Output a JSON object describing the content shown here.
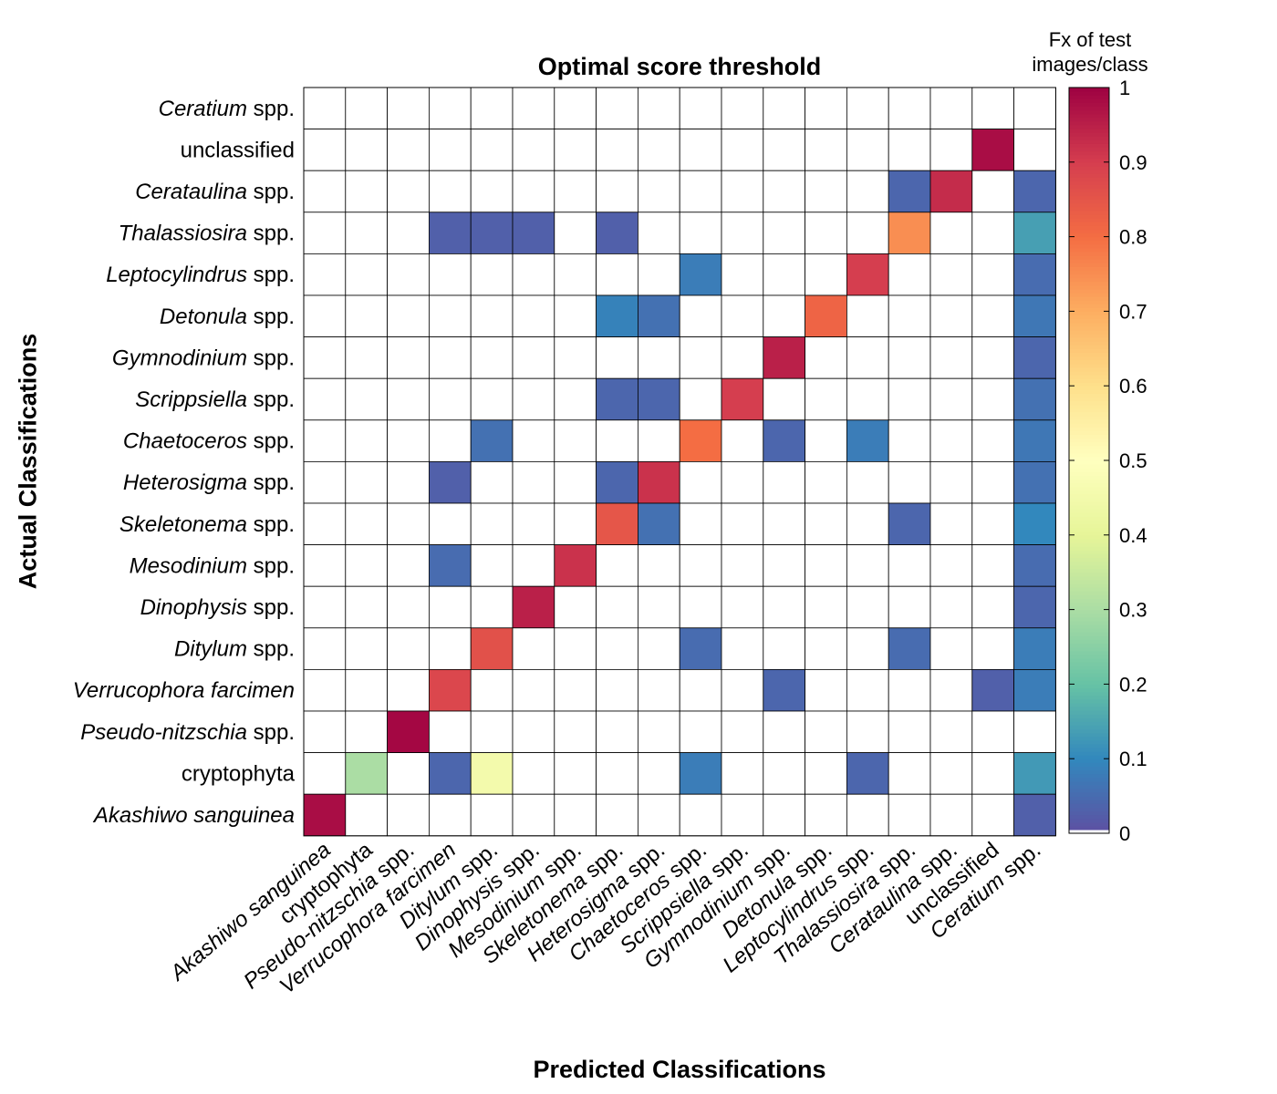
{
  "chart_data": {
    "type": "heatmap",
    "title": "Optimal score threshold",
    "xlabel": "Predicted Classifications",
    "ylabel": "Actual Classifications",
    "x_categories": [
      {
        "name": "Akashiwo sanguinea",
        "italic": "Akashiwo sanguinea",
        "suffix": ""
      },
      {
        "name": "cryptophyta",
        "italic": "",
        "suffix": "cryptophyta"
      },
      {
        "name": "Pseudo-nitzschia spp.",
        "italic": "Pseudo-nitzschia",
        "suffix": " spp."
      },
      {
        "name": "Verrucophora farcimen",
        "italic": "Verrucophora farcimen",
        "suffix": ""
      },
      {
        "name": "Ditylum spp.",
        "italic": "Ditylum",
        "suffix": " spp."
      },
      {
        "name": "Dinophysis spp.",
        "italic": "Dinophysis",
        "suffix": " spp."
      },
      {
        "name": "Mesodinium spp.",
        "italic": "Mesodinium",
        "suffix": " spp."
      },
      {
        "name": "Skeletonema spp.",
        "italic": "Skeletonema",
        "suffix": " spp."
      },
      {
        "name": "Heterosigma spp.",
        "italic": "Heterosigma",
        "suffix": " spp."
      },
      {
        "name": "Chaetoceros spp.",
        "italic": "Chaetoceros",
        "suffix": " spp."
      },
      {
        "name": "Scrippsiella spp.",
        "italic": "Scrippsiella",
        "suffix": " spp."
      },
      {
        "name": "Gymnodinium spp.",
        "italic": "Gymnodinium",
        "suffix": " spp."
      },
      {
        "name": "Detonula spp.",
        "italic": "Detonula",
        "suffix": " spp."
      },
      {
        "name": "Leptocylindrus spp.",
        "italic": "Leptocylindrus",
        "suffix": " spp."
      },
      {
        "name": "Thalassiosira spp.",
        "italic": "Thalassiosira",
        "suffix": " spp."
      },
      {
        "name": "Cerataulina spp.",
        "italic": "Cerataulina",
        "suffix": " spp."
      },
      {
        "name": "unclassified",
        "italic": "",
        "suffix": "unclassified"
      },
      {
        "name": "Ceratium spp.",
        "italic": "Ceratium",
        "suffix": " spp."
      }
    ],
    "y_categories": [
      {
        "name": "Ceratium spp.",
        "italic": "Ceratium",
        "suffix": " spp."
      },
      {
        "name": "unclassified",
        "italic": "",
        "suffix": "unclassified"
      },
      {
        "name": "Cerataulina spp.",
        "italic": "Cerataulina",
        "suffix": " spp."
      },
      {
        "name": "Thalassiosira spp.",
        "italic": "Thalassiosira",
        "suffix": " spp."
      },
      {
        "name": "Leptocylindrus spp.",
        "italic": "Leptocylindrus",
        "suffix": " spp."
      },
      {
        "name": "Detonula spp.",
        "italic": "Detonula",
        "suffix": " spp."
      },
      {
        "name": "Gymnodinium spp.",
        "italic": "Gymnodinium",
        "suffix": " spp."
      },
      {
        "name": "Scrippsiella spp.",
        "italic": "Scrippsiella",
        "suffix": " spp."
      },
      {
        "name": "Chaetoceros spp.",
        "italic": "Chaetoceros",
        "suffix": " spp."
      },
      {
        "name": "Heterosigma spp.",
        "italic": "Heterosigma",
        "suffix": " spp."
      },
      {
        "name": "Skeletonema spp.",
        "italic": "Skeletonema",
        "suffix": " spp."
      },
      {
        "name": "Mesodinium spp.",
        "italic": "Mesodinium",
        "suffix": " spp."
      },
      {
        "name": "Dinophysis spp.",
        "italic": "Dinophysis",
        "suffix": " spp."
      },
      {
        "name": "Ditylum spp.",
        "italic": "Ditylum",
        "suffix": " spp."
      },
      {
        "name": "Verrucophora farcimen",
        "italic": "Verrucophora farcimen",
        "suffix": ""
      },
      {
        "name": "Pseudo-nitzschia spp.",
        "italic": "Pseudo-nitzschia",
        "suffix": " spp."
      },
      {
        "name": "cryptophyta",
        "italic": "",
        "suffix": "cryptophyta"
      },
      {
        "name": "Akashiwo sanguinea",
        "italic": "Akashiwo sanguinea",
        "suffix": ""
      }
    ],
    "values": [
      [
        0,
        0,
        0,
        0,
        0,
        0,
        0,
        0,
        0,
        0,
        0,
        0,
        0,
        0,
        0,
        0,
        0,
        0
      ],
      [
        0,
        0,
        0,
        0,
        0,
        0,
        0,
        0,
        0,
        0,
        0,
        0,
        0,
        0,
        0,
        0,
        0.98,
        0
      ],
      [
        0,
        0,
        0,
        0,
        0,
        0,
        0,
        0,
        0,
        0,
        0,
        0,
        0,
        0,
        0.04,
        0.93,
        0,
        0.04
      ],
      [
        0,
        0,
        0,
        0.03,
        0.03,
        0.03,
        0,
        0.03,
        0,
        0,
        0,
        0,
        0,
        0,
        0.75,
        0,
        0,
        0.14
      ],
      [
        0,
        0,
        0,
        0,
        0,
        0,
        0,
        0,
        0,
        0.08,
        0,
        0,
        0,
        0.9,
        0,
        0,
        0,
        0.05
      ],
      [
        0,
        0,
        0,
        0,
        0,
        0,
        0,
        0.09,
        0.06,
        0,
        0,
        0,
        0.82,
        0,
        0,
        0,
        0,
        0.07
      ],
      [
        0,
        0,
        0,
        0,
        0,
        0,
        0,
        0,
        0,
        0,
        0,
        0.95,
        0,
        0,
        0,
        0,
        0,
        0.04
      ],
      [
        0,
        0,
        0,
        0,
        0,
        0,
        0,
        0.04,
        0.04,
        0,
        0.9,
        0,
        0,
        0,
        0,
        0,
        0,
        0.06
      ],
      [
        0,
        0,
        0,
        0,
        0.06,
        0,
        0,
        0,
        0,
        0.8,
        0,
        0.04,
        0,
        0.08,
        0,
        0,
        0,
        0.07
      ],
      [
        0,
        0,
        0,
        0.03,
        0,
        0,
        0,
        0.04,
        0.92,
        0,
        0,
        0,
        0,
        0,
        0,
        0,
        0,
        0.06
      ],
      [
        0,
        0,
        0,
        0,
        0,
        0,
        0,
        0.85,
        0.06,
        0,
        0,
        0,
        0,
        0,
        0.04,
        0,
        0,
        0.1
      ],
      [
        0,
        0,
        0,
        0.05,
        0,
        0,
        0.92,
        0,
        0,
        0,
        0,
        0,
        0,
        0,
        0,
        0,
        0,
        0.05
      ],
      [
        0,
        0,
        0,
        0,
        0,
        0.95,
        0,
        0,
        0,
        0,
        0,
        0,
        0,
        0,
        0,
        0,
        0,
        0.04
      ],
      [
        0,
        0,
        0,
        0,
        0.86,
        0,
        0,
        0,
        0,
        0.05,
        0,
        0,
        0,
        0,
        0.05,
        0,
        0,
        0.08
      ],
      [
        0,
        0,
        0,
        0.88,
        0,
        0,
        0,
        0,
        0,
        0,
        0,
        0.04,
        0,
        0,
        0,
        0,
        0.03,
        0.08
      ],
      [
        0,
        0,
        0.99,
        0,
        0,
        0,
        0,
        0,
        0,
        0,
        0,
        0,
        0,
        0,
        0,
        0,
        0,
        0
      ],
      [
        0,
        0.3,
        0,
        0.04,
        0.45,
        0,
        0,
        0,
        0,
        0.08,
        0,
        0,
        0,
        0.04,
        0,
        0,
        0,
        0.13
      ],
      [
        0.98,
        0,
        0,
        0,
        0,
        0,
        0,
        0,
        0,
        0,
        0,
        0,
        0,
        0,
        0,
        0,
        0,
        0.03
      ]
    ],
    "colorbar": {
      "label": "Fx of test images/class",
      "label_lines": [
        "Fx of test",
        "images/class"
      ],
      "ticks": [
        "0",
        "0.1",
        "0.2",
        "0.3",
        "0.4",
        "0.5",
        "0.6",
        "0.7",
        "0.8",
        "0.9",
        "1"
      ],
      "range": [
        0,
        1
      ],
      "zero_color": "#ffffff",
      "colormap": "spectral-reversed"
    }
  }
}
